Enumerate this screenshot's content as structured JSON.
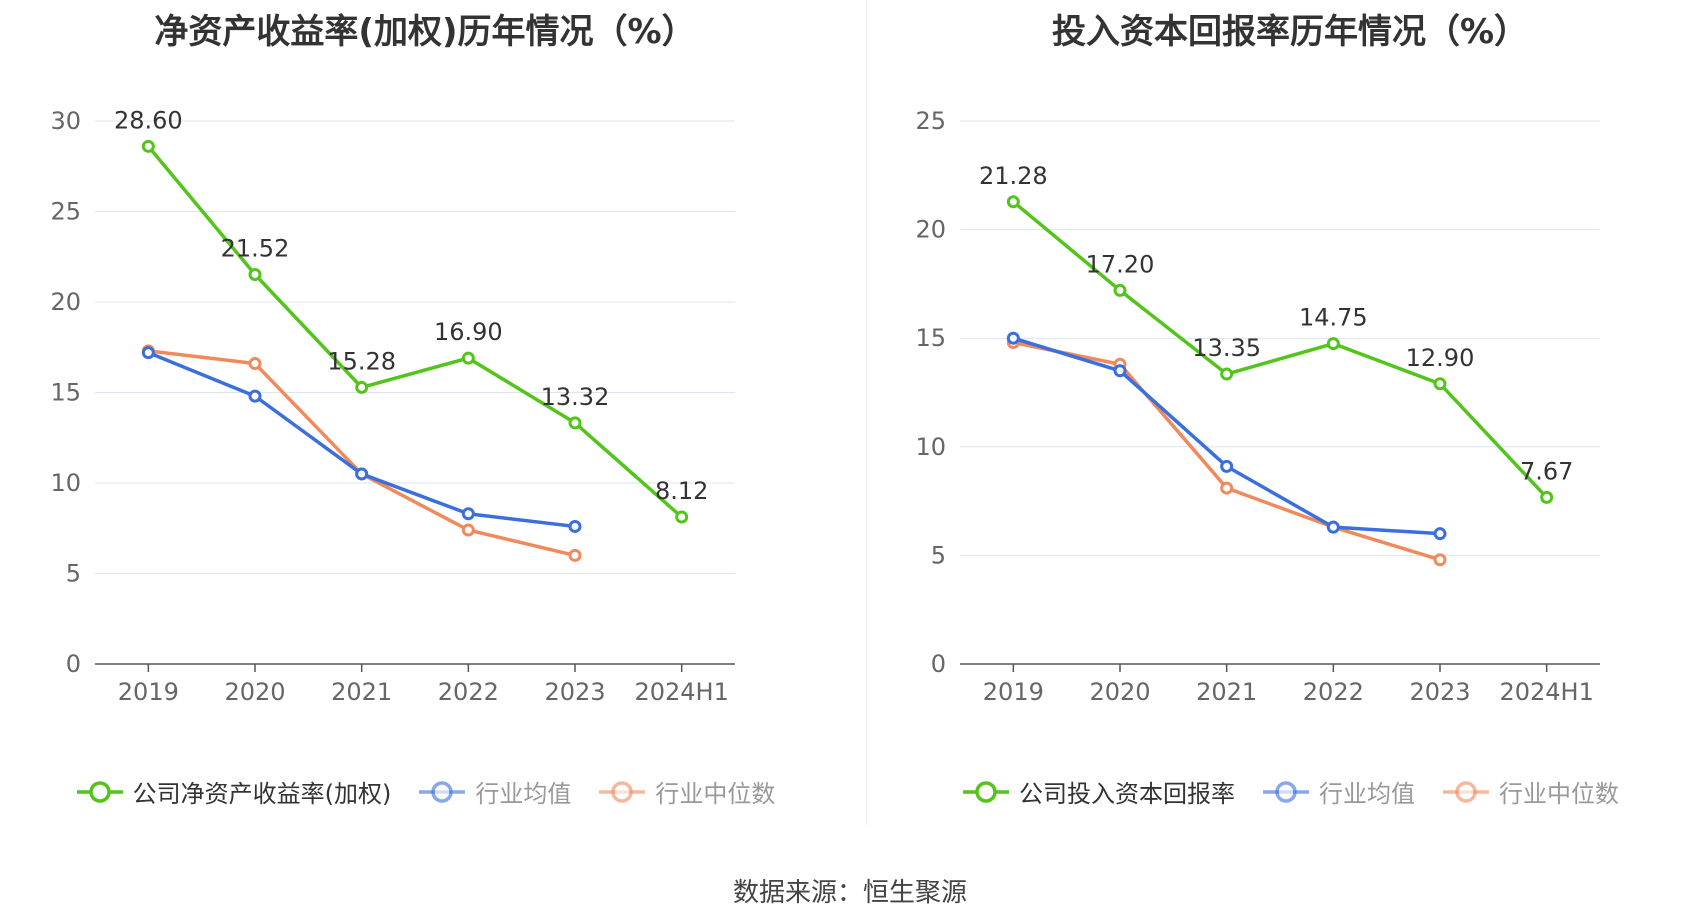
{
  "chart_data": [
    {
      "type": "line",
      "title": "净资产收益率(加权)历年情况（%）",
      "categories": [
        "2019",
        "2020",
        "2021",
        "2022",
        "2023",
        "2024H1"
      ],
      "ylim": [
        0,
        30
      ],
      "yticks": [
        0,
        5,
        10,
        15,
        20,
        25,
        30
      ],
      "grid": true,
      "legend_position": "bottom",
      "series": [
        {
          "name": "公司净资产收益率(加权)",
          "color": "#52c41a",
          "values": [
            28.6,
            21.52,
            15.28,
            16.9,
            13.32,
            8.12
          ],
          "labels": [
            "28.60",
            "21.52",
            "15.28",
            "16.90",
            "13.32",
            "8.12"
          ]
        },
        {
          "name": "行业均值",
          "color": "#3b6fdc",
          "values": [
            17.2,
            14.8,
            10.5,
            8.3,
            7.6,
            null
          ]
        },
        {
          "name": "行业中位数",
          "color": "#f08a5d",
          "values": [
            17.3,
            16.6,
            10.5,
            7.4,
            6.0,
            null
          ]
        }
      ]
    },
    {
      "type": "line",
      "title": "投入资本回报率历年情况（%）",
      "categories": [
        "2019",
        "2020",
        "2021",
        "2022",
        "2023",
        "2024H1"
      ],
      "ylim": [
        0,
        25
      ],
      "yticks": [
        0,
        5,
        10,
        15,
        20,
        25
      ],
      "grid": true,
      "legend_position": "bottom",
      "series": [
        {
          "name": "公司投入资本回报率",
          "color": "#52c41a",
          "values": [
            21.28,
            17.2,
            13.35,
            14.75,
            12.9,
            7.67
          ],
          "labels": [
            "21.28",
            "17.20",
            "13.35",
            "14.75",
            "12.90",
            "7.67"
          ]
        },
        {
          "name": "行业均值",
          "color": "#3b6fdc",
          "values": [
            15.0,
            13.5,
            9.1,
            6.3,
            6.0,
            null
          ]
        },
        {
          "name": "行业中位数",
          "color": "#f08a5d",
          "values": [
            14.8,
            13.8,
            8.1,
            6.3,
            4.8,
            null
          ]
        }
      ]
    }
  ],
  "footer": {
    "source": "数据来源：恒生聚源"
  },
  "colors": {
    "grid": "#dde3f0",
    "axis": "#555555",
    "tick_text": "#666666",
    "label_text": "#333333",
    "legend_inactive": "#999999"
  }
}
